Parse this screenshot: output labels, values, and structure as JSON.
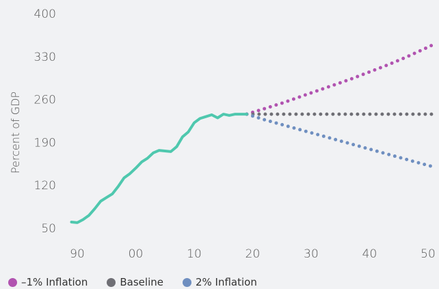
{
  "chart_data": {
    "type": "line",
    "ylabel": "Percent of GDP",
    "xlabel": "",
    "yticks": [
      50,
      120,
      190,
      260,
      330,
      400
    ],
    "ylim": [
      50,
      400
    ],
    "xticks": [
      1990,
      2000,
      2010,
      2020,
      2030,
      2040,
      2050
    ],
    "xtick_labels": [
      "90",
      "00",
      "10",
      "20",
      "30",
      "40",
      "50"
    ],
    "xlim": [
      1990,
      2050
    ],
    "grid": false,
    "legend_position": "bottom-left",
    "historical": {
      "color": "#4fc8ae",
      "x": [
        1989,
        1990,
        1991,
        1992,
        1993,
        1994,
        1995,
        1996,
        1997,
        1998,
        1999,
        2000,
        2001,
        2002,
        2003,
        2004,
        2005,
        2006,
        2007,
        2008,
        2009,
        2010,
        2011,
        2012,
        2013,
        2014,
        2015,
        2016,
        2017,
        2018,
        2019
      ],
      "y": [
        60,
        59,
        64,
        71,
        82,
        94,
        100,
        106,
        118,
        132,
        139,
        148,
        158,
        164,
        173,
        177,
        176,
        175,
        183,
        199,
        207,
        222,
        229,
        232,
        235,
        230,
        236,
        234,
        236,
        236,
        236
      ]
    },
    "series": [
      {
        "name": "–1% Inflation",
        "color": "#b153b0",
        "x": [
          2019,
          2022,
          2025,
          2028,
          2031,
          2034,
          2037,
          2040,
          2043,
          2046,
          2049,
          2051
        ],
        "y": [
          236,
          245,
          254,
          264,
          274,
          284,
          294,
          305,
          316,
          328,
          341,
          350
        ]
      },
      {
        "name": "Baseline",
        "color": "#6f6f75",
        "x": [
          2019,
          2051
        ],
        "y": [
          236,
          236
        ]
      },
      {
        "name": "2% Inflation",
        "color": "#6f8fc0",
        "x": [
          2019,
          2022,
          2025,
          2028,
          2031,
          2034,
          2037,
          2040,
          2043,
          2046,
          2049,
          2051
        ],
        "y": [
          236,
          227,
          219,
          211,
          203,
          195,
          187,
          179,
          171,
          163,
          155,
          150
        ]
      }
    ]
  }
}
